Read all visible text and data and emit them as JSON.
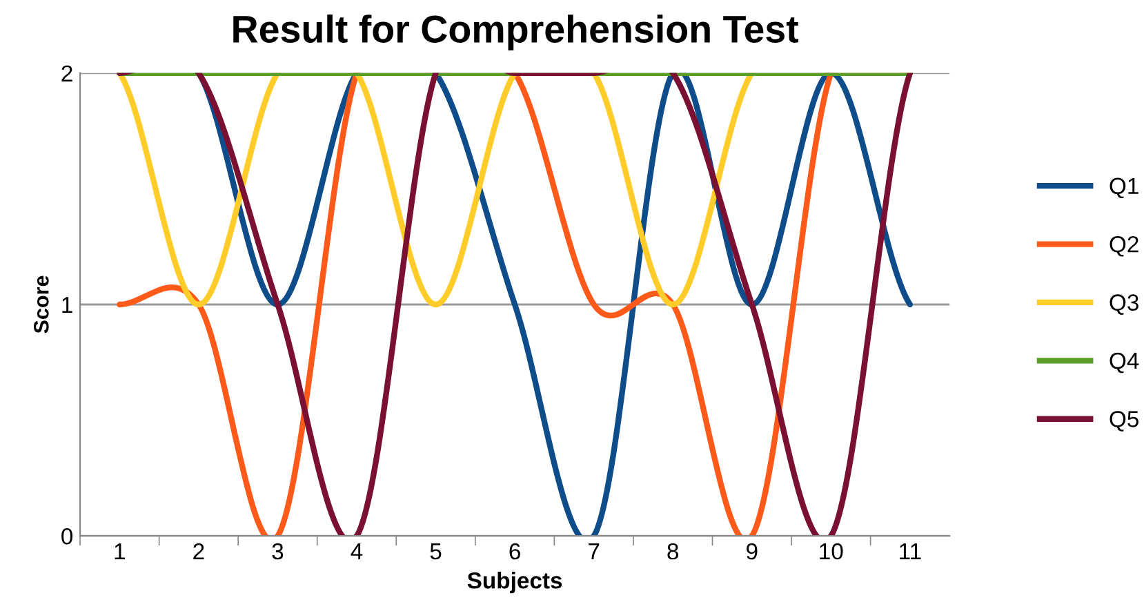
{
  "chart_data": {
    "type": "line",
    "title": "Result for Comprehension Test",
    "xlabel": "Subjects",
    "ylabel": "Score",
    "categories": [
      "1",
      "2",
      "3",
      "4",
      "5",
      "6",
      "7",
      "8",
      "9",
      "10",
      "11"
    ],
    "series": [
      {
        "name": "Q1",
        "color": "#0f4c8a",
        "values": [
          2,
          2,
          1,
          2,
          2,
          1,
          0,
          2,
          1,
          2,
          1
        ]
      },
      {
        "name": "Q2",
        "color": "#ff5a1a",
        "values": [
          1,
          1,
          0,
          2,
          2,
          2,
          1,
          1,
          0,
          2,
          2
        ]
      },
      {
        "name": "Q3",
        "color": "#ffcc2a",
        "values": [
          2,
          1,
          2,
          2,
          1,
          2,
          2,
          1,
          2,
          2,
          2
        ]
      },
      {
        "name": "Q4",
        "color": "#5a9e28",
        "values": [
          2,
          2,
          2,
          2,
          2,
          2,
          2,
          2,
          2,
          2,
          2
        ]
      },
      {
        "name": "Q5",
        "color": "#7a1032",
        "values": [
          2,
          2,
          1,
          0,
          2,
          2,
          2,
          2,
          1,
          0,
          2
        ]
      }
    ],
    "ylim": [
      0,
      2
    ],
    "yticks": [
      0,
      1,
      2
    ],
    "grid": "y",
    "legend": "right",
    "marker": "none",
    "line_style": "solid"
  }
}
